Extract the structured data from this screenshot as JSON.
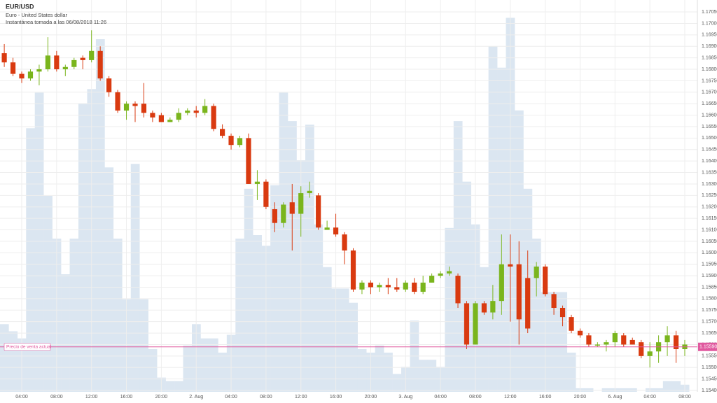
{
  "chart_data": {
    "type": "candlestick",
    "title": "EUR/USD",
    "subtitle": "Euro - United States dollar",
    "snapshot": "Instantánea tomada a las 06/08/2018 11:26",
    "categories": [
      null,
      null,
      "04:00",
      null,
      null,
      null,
      "08:00",
      null,
      null,
      null,
      "12:00",
      null,
      null,
      null,
      "16:00",
      null,
      null,
      null,
      "20:00",
      null,
      null,
      null,
      "2. Aug",
      null,
      null,
      null,
      "04:00",
      null,
      null,
      null,
      "08:00",
      null,
      null,
      null,
      "12:00",
      null,
      null,
      null,
      "16:00",
      null,
      null,
      null,
      "20:00",
      null,
      null,
      null,
      "3. Aug",
      null,
      null,
      null,
      "04:00",
      null,
      null,
      null,
      "08:00",
      null,
      null,
      null,
      "12:00",
      null,
      null,
      null,
      "16:00",
      null,
      null,
      null,
      "20:00",
      null,
      null,
      null,
      "6. Aug",
      null,
      null,
      null,
      "04:00",
      null,
      null,
      null,
      "08:00"
    ],
    "open": [
      1.1687,
      1.1683,
      1.1678,
      1.1676,
      1.1679,
      1.168,
      1.1686,
      1.168,
      1.1681,
      1.1685,
      1.1684,
      1.1688,
      1.1676,
      1.167,
      1.1662,
      1.1665,
      1.1665,
      1.1661,
      1.166,
      1.1657,
      1.1658,
      1.1661,
      1.1662,
      1.1661,
      1.1664,
      1.1654,
      1.1651,
      1.1647,
      1.165,
      1.163,
      1.1631,
      1.1619,
      1.1613,
      1.1622,
      1.1617,
      1.1626,
      1.1625,
      1.161,
      1.1611,
      1.1608,
      1.1601,
      1.1584,
      1.1587,
      1.1585,
      1.1586,
      1.1585,
      1.1584,
      1.1587,
      1.1583,
      1.1587,
      1.159,
      1.1591,
      1.159,
      1.1578,
      1.156,
      1.1578,
      1.1574,
      1.1579,
      1.1595,
      1.1595,
      1.1589,
      1.1589,
      1.1594,
      1.1582,
      1.1576,
      1.1572,
      1.1566,
      1.1564,
      1.156,
      1.156,
      1.1561,
      1.1564,
      1.1562,
      1.1561,
      1.1555,
      1.1557,
      1.1561,
      1.1564,
      1.1558
    ],
    "high": [
      1.1691,
      1.1685,
      1.1679,
      1.168,
      1.1682,
      1.1694,
      1.1688,
      1.1682,
      1.1685,
      1.1686,
      1.1697,
      1.169,
      1.1677,
      1.1671,
      1.1666,
      1.1666,
      1.1674,
      1.1662,
      1.1661,
      1.1659,
      1.1663,
      1.1663,
      1.1664,
      1.1667,
      1.1665,
      1.1656,
      1.1652,
      1.1651,
      1.1652,
      1.1636,
      1.1632,
      1.1622,
      1.1622,
      1.163,
      1.1629,
      1.1631,
      1.1626,
      1.1614,
      1.1617,
      1.1609,
      1.1602,
      1.1588,
      1.1588,
      1.1587,
      1.1589,
      1.1589,
      1.1588,
      1.1589,
      1.159,
      1.1591,
      1.1592,
      1.1594,
      1.1591,
      1.1579,
      1.1579,
      1.1579,
      1.1586,
      1.1608,
      1.1608,
      1.1605,
      1.1601,
      1.1596,
      1.1595,
      1.1583,
      1.1577,
      1.1573,
      1.1567,
      1.1565,
      1.1561,
      1.1562,
      1.1566,
      1.1565,
      1.1563,
      1.1562,
      1.1561,
      1.1564,
      1.1568,
      1.1566,
      1.1562
    ],
    "low": [
      1.1681,
      1.1677,
      1.1674,
      1.1675,
      1.1673,
      1.1679,
      1.1679,
      1.1677,
      1.168,
      1.168,
      1.1683,
      1.1675,
      1.1668,
      1.1661,
      1.1658,
      1.1657,
      1.1659,
      1.1657,
      1.1657,
      1.1657,
      1.1657,
      1.166,
      1.1659,
      1.166,
      1.1653,
      1.165,
      1.1645,
      1.1646,
      1.163,
      1.1623,
      1.1619,
      1.1609,
      1.1611,
      1.1601,
      1.1607,
      1.1624,
      1.161,
      1.161,
      1.1607,
      1.1595,
      1.1583,
      1.1582,
      1.1582,
      1.1583,
      1.1582,
      1.1583,
      1.1583,
      1.1582,
      1.1582,
      1.1587,
      1.1589,
      1.159,
      1.1576,
      1.1558,
      1.156,
      1.1573,
      1.1571,
      1.1573,
      1.157,
      1.156,
      1.1565,
      1.1581,
      1.1581,
      1.1573,
      1.1568,
      1.1565,
      1.1563,
      1.1559,
      1.1559,
      1.1557,
      1.1559,
      1.1559,
      1.156,
      1.1554,
      1.155,
      1.1552,
      1.1555,
      1.1552,
      1.1555
    ],
    "close": [
      1.1683,
      1.1678,
      1.1676,
      1.1679,
      1.168,
      1.1686,
      1.168,
      1.1681,
      1.1684,
      1.1684,
      1.1688,
      1.1676,
      1.167,
      1.1662,
      1.1665,
      1.1664,
      1.1661,
      1.1659,
      1.1657,
      1.1658,
      1.1661,
      1.1662,
      1.1661,
      1.1664,
      1.1654,
      1.1651,
      1.1647,
      1.165,
      1.163,
      1.1631,
      1.162,
      1.1613,
      1.1621,
      1.1617,
      1.1626,
      1.1627,
      1.1611,
      1.1611,
      1.1608,
      1.1601,
      1.1584,
      1.1587,
      1.1585,
      1.1586,
      1.1585,
      1.1584,
      1.1587,
      1.1583,
      1.1587,
      1.159,
      1.1591,
      1.1592,
      1.1578,
      1.156,
      1.1578,
      1.1574,
      1.1579,
      1.1595,
      1.1594,
      1.1571,
      1.1567,
      1.1594,
      1.1582,
      1.1576,
      1.1572,
      1.1566,
      1.1564,
      1.156,
      1.156,
      1.1561,
      1.1565,
      1.156,
      1.156,
      1.1555,
      1.1557,
      1.1561,
      1.1564,
      1.1558,
      1.156
    ],
    "volume": [
      19,
      17,
      15,
      74,
      84,
      55,
      43,
      33,
      43,
      81,
      85,
      99,
      63,
      43,
      26,
      64,
      26,
      12,
      4,
      3,
      3,
      13,
      19,
      15,
      15,
      11,
      16,
      43,
      57,
      44,
      41,
      58,
      84,
      76,
      65,
      75,
      47,
      35,
      29,
      29,
      25,
      12,
      11,
      13,
      11,
      5,
      7,
      20,
      9,
      9,
      7,
      46,
      76,
      59,
      47,
      35,
      97,
      91,
      105,
      79,
      57,
      43,
      28,
      28,
      28,
      11,
      1,
      1,
      0,
      1,
      1,
      1,
      1,
      0,
      1,
      1,
      3,
      3,
      2
    ],
    "volume_lim": [
      0,
      110
    ],
    "up_color": "#7ab51d",
    "down_color": "#d93a10",
    "volume_color": "#dbe6f1",
    "current_price": 1.1559,
    "current_price_label": "1.15590",
    "current_price_text": "Precio de venta actual",
    "current_color": "#e0589e",
    "ylim": [
      1.15394,
      1.17102
    ],
    "yticks": [
      {
        "value": 1.1705,
        "label": "1.17050"
      },
      {
        "value": 1.17,
        "label": "1.17000"
      },
      {
        "value": 1.1695,
        "label": "1.16950"
      },
      {
        "value": 1.169,
        "label": "1.16900"
      },
      {
        "value": 1.1685,
        "label": "1.16850"
      },
      {
        "value": 1.168,
        "label": "1.16800"
      },
      {
        "value": 1.1675,
        "label": "1.16750"
      },
      {
        "value": 1.167,
        "label": "1.16700"
      },
      {
        "value": 1.1665,
        "label": "1.16650"
      },
      {
        "value": 1.166,
        "label": "1.16600"
      },
      {
        "value": 1.1655,
        "label": "1.16550"
      },
      {
        "value": 1.165,
        "label": "1.16500"
      },
      {
        "value": 1.1645,
        "label": "1.16450"
      },
      {
        "value": 1.164,
        "label": "1.16400"
      },
      {
        "value": 1.1635,
        "label": "1.16350"
      },
      {
        "value": 1.163,
        "label": "1.16300"
      },
      {
        "value": 1.1625,
        "label": "1.16250"
      },
      {
        "value": 1.162,
        "label": "1.16200"
      },
      {
        "value": 1.1615,
        "label": "1.16150"
      },
      {
        "value": 1.161,
        "label": "1.16100"
      },
      {
        "value": 1.1605,
        "label": "1.16050"
      },
      {
        "value": 1.16,
        "label": "1.16000"
      },
      {
        "value": 1.1595,
        "label": "1.15950"
      },
      {
        "value": 1.159,
        "label": "1.15900"
      },
      {
        "value": 1.1585,
        "label": "1.15850"
      },
      {
        "value": 1.158,
        "label": "1.15800"
      },
      {
        "value": 1.1575,
        "label": "1.15750"
      },
      {
        "value": 1.157,
        "label": "1.15700"
      },
      {
        "value": 1.1565,
        "label": "1.15650"
      },
      {
        "value": 1.156,
        "label": "1.15600"
      },
      {
        "value": 1.1555,
        "label": "1.15550"
      },
      {
        "value": 1.155,
        "label": "1.15500"
      },
      {
        "value": 1.1545,
        "label": "1.15450"
      },
      {
        "value": 1.154,
        "label": "1.15400"
      }
    ],
    "grid": true
  }
}
